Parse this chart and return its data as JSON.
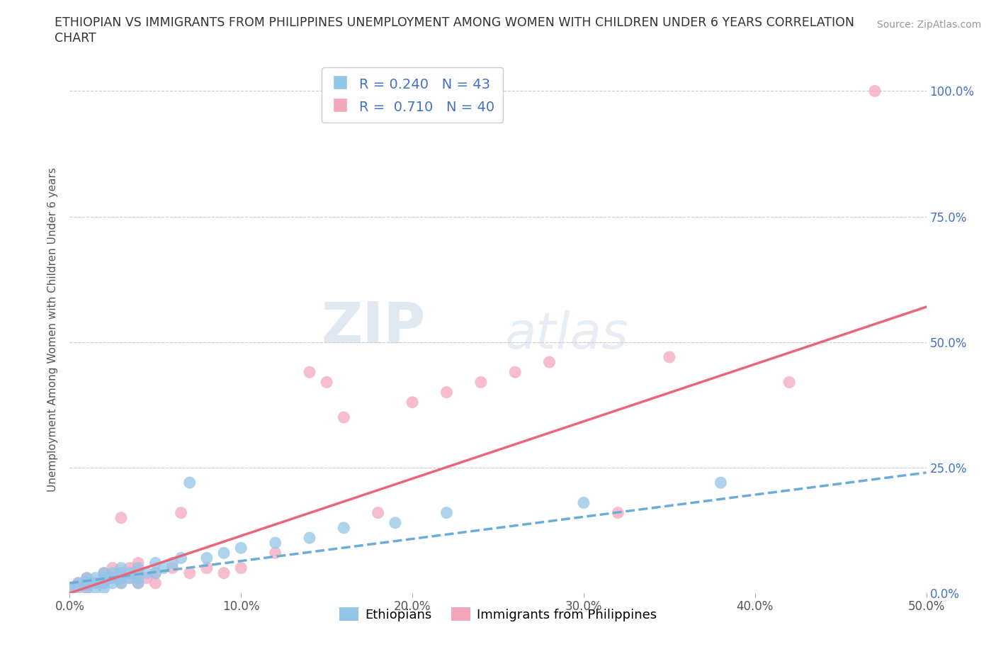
{
  "title_line1": "ETHIOPIAN VS IMMIGRANTS FROM PHILIPPINES UNEMPLOYMENT AMONG WOMEN WITH CHILDREN UNDER 6 YEARS CORRELATION",
  "title_line2": "CHART",
  "source_text": "Source: ZipAtlas.com",
  "ylabel": "Unemployment Among Women with Children Under 6 years",
  "xlim": [
    0.0,
    0.5
  ],
  "ylim": [
    0.0,
    1.05
  ],
  "xtick_labels": [
    "0.0%",
    "10.0%",
    "20.0%",
    "30.0%",
    "40.0%",
    "50.0%"
  ],
  "xtick_values": [
    0.0,
    0.1,
    0.2,
    0.3,
    0.4,
    0.5
  ],
  "ytick_labels": [
    "0.0%",
    "25.0%",
    "50.0%",
    "75.0%",
    "100.0%"
  ],
  "ytick_values": [
    0.0,
    0.25,
    0.5,
    0.75,
    1.0
  ],
  "blue_color": "#92C5E8",
  "pink_color": "#F4A7BB",
  "blue_line_color": "#6aaed6",
  "pink_line_color": "#E8657A",
  "R_blue": 0.24,
  "N_blue": 43,
  "R_pink": 0.71,
  "N_pink": 40,
  "legend_label_blue": "Ethiopians",
  "legend_label_pink": "Immigrants from Philippines",
  "watermark_zip": "ZIP",
  "watermark_atlas": "atlas",
  "grid_color": "#CCCCCC",
  "title_color": "#333333",
  "axis_label_color": "#555555",
  "tick_label_color_right": "#4472C4",
  "background_color": "#FFFFFF",
  "blue_scatter_x": [
    0.0,
    0.005,
    0.005,
    0.01,
    0.01,
    0.01,
    0.01,
    0.015,
    0.015,
    0.015,
    0.02,
    0.02,
    0.02,
    0.02,
    0.025,
    0.025,
    0.025,
    0.03,
    0.03,
    0.03,
    0.03,
    0.035,
    0.035,
    0.04,
    0.04,
    0.04,
    0.045,
    0.05,
    0.05,
    0.055,
    0.06,
    0.065,
    0.07,
    0.08,
    0.09,
    0.1,
    0.12,
    0.14,
    0.16,
    0.19,
    0.22,
    0.3,
    0.38
  ],
  "blue_scatter_y": [
    0.01,
    0.01,
    0.02,
    0.01,
    0.02,
    0.02,
    0.03,
    0.01,
    0.02,
    0.03,
    0.01,
    0.02,
    0.03,
    0.04,
    0.02,
    0.03,
    0.04,
    0.02,
    0.03,
    0.04,
    0.05,
    0.03,
    0.04,
    0.02,
    0.03,
    0.05,
    0.04,
    0.04,
    0.06,
    0.05,
    0.06,
    0.07,
    0.22,
    0.07,
    0.08,
    0.09,
    0.1,
    0.11,
    0.13,
    0.14,
    0.16,
    0.18,
    0.22
  ],
  "pink_scatter_x": [
    0.0,
    0.005,
    0.01,
    0.01,
    0.015,
    0.02,
    0.02,
    0.025,
    0.025,
    0.03,
    0.03,
    0.03,
    0.035,
    0.035,
    0.04,
    0.04,
    0.04,
    0.045,
    0.05,
    0.05,
    0.06,
    0.065,
    0.07,
    0.08,
    0.09,
    0.1,
    0.12,
    0.14,
    0.15,
    0.16,
    0.18,
    0.2,
    0.22,
    0.24,
    0.26,
    0.28,
    0.32,
    0.35,
    0.42,
    0.47
  ],
  "pink_scatter_y": [
    0.01,
    0.02,
    0.01,
    0.03,
    0.02,
    0.02,
    0.04,
    0.03,
    0.05,
    0.02,
    0.04,
    0.15,
    0.03,
    0.05,
    0.02,
    0.04,
    0.06,
    0.03,
    0.02,
    0.04,
    0.05,
    0.16,
    0.04,
    0.05,
    0.04,
    0.05,
    0.08,
    0.44,
    0.42,
    0.35,
    0.16,
    0.38,
    0.4,
    0.42,
    0.44,
    0.46,
    0.16,
    0.47,
    0.42,
    1.0
  ],
  "pink_line_x": [
    0.0,
    0.5
  ],
  "pink_line_y": [
    0.0,
    0.57
  ],
  "blue_line_x": [
    0.0,
    0.5
  ],
  "blue_line_y": [
    0.02,
    0.24
  ]
}
